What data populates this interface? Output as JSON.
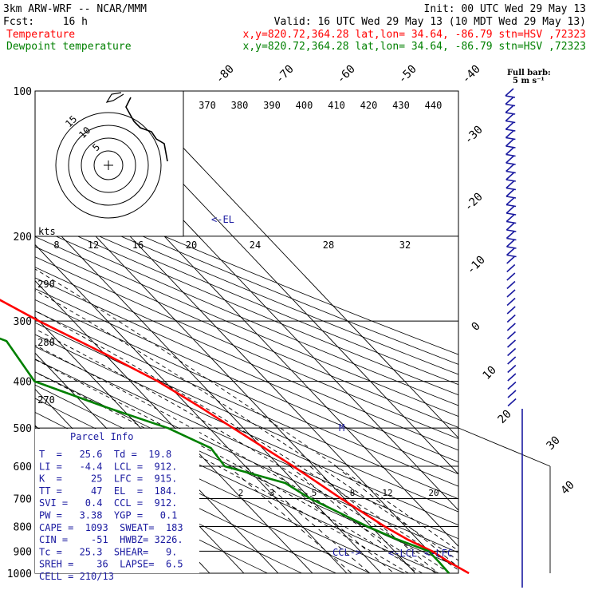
{
  "header": {
    "model": "3km ARW-WRF -- NCAR/MMM",
    "init": "Init: 00 UTC Wed 29 May 13",
    "fcst_label": "Fcst:",
    "fcst_value": "16 h",
    "valid": "Valid: 16 UTC Wed 29 May 13 (10 MDT Wed 29 May 13)",
    "temp_label": "Temperature",
    "dew_label": "Dewpoint temperature",
    "loc_line": "x,y=820.72,364.28   lat,lon= 34.64, -86.79   stn=HSV ,72323"
  },
  "colors": {
    "temperature": "#ff0000",
    "dewpoint": "#008000",
    "wind_barbs": "#1a1aa0",
    "parcel_info": "#1a1aa0"
  },
  "barb_legend": {
    "title": "Full barb:",
    "value": "5 m s⁻¹"
  },
  "hodograph": {
    "units": "kts",
    "ring_labels": [
      "15",
      "10",
      "5"
    ]
  },
  "chart_data": {
    "type": "line",
    "title": "Skew-T log-P sounding",
    "pressure_levels": [
      100,
      200,
      300,
      400,
      500,
      600,
      700,
      800,
      900,
      1000
    ],
    "isotherm_labels": [
      "-80",
      "-70",
      "-60",
      "-50",
      "-40",
      "-30",
      "-20",
      "-10",
      "0",
      "10",
      "20",
      "30",
      "40"
    ],
    "theta_labels": [
      "370",
      "380",
      "390",
      "400",
      "410",
      "420",
      "430",
      "440"
    ],
    "theta_e_labels": [
      "290",
      "280",
      "270"
    ],
    "theta_e_upper_labels": [
      "8",
      "12",
      "16",
      "20",
      "24",
      "28",
      "32"
    ],
    "mixing_ratio_labels": [
      "2",
      "3",
      "5",
      "8",
      "12",
      "20"
    ],
    "annotations": [
      "<-EL",
      "M",
      "CCL->",
      "<-LCL",
      "<-LFC"
    ],
    "series": [
      {
        "name": "Temperature",
        "color": "#ff0000",
        "points": [
          [
            100,
            -70
          ],
          [
            125,
            -66
          ],
          [
            145,
            -62
          ],
          [
            170,
            -60
          ],
          [
            185,
            -59
          ],
          [
            200,
            -54
          ],
          [
            250,
            -40
          ],
          [
            300,
            -30
          ],
          [
            350,
            -20
          ],
          [
            400,
            -12
          ],
          [
            450,
            -7
          ],
          [
            500,
            -3
          ],
          [
            600,
            4
          ],
          [
            700,
            9
          ],
          [
            800,
            14
          ],
          [
            850,
            17
          ],
          [
            900,
            21
          ],
          [
            950,
            23
          ],
          [
            1000,
            25.6
          ]
        ]
      },
      {
        "name": "Dewpoint temperature",
        "color": "#008000",
        "points": [
          [
            100,
            -91
          ],
          [
            120,
            -93
          ],
          [
            150,
            -87
          ],
          [
            170,
            -87
          ],
          [
            200,
            -82
          ],
          [
            250,
            -68
          ],
          [
            300,
            -55
          ],
          [
            330,
            -45
          ],
          [
            400,
            -48
          ],
          [
            450,
            -35
          ],
          [
            500,
            -22
          ],
          [
            550,
            -15
          ],
          [
            600,
            -16
          ],
          [
            650,
            -3
          ],
          [
            700,
            0
          ],
          [
            800,
            9
          ],
          [
            850,
            14
          ],
          [
            900,
            20
          ],
          [
            950,
            20
          ],
          [
            1000,
            19.8
          ]
        ]
      }
    ]
  },
  "parcel_info": {
    "title": "Parcel Info",
    "rows": [
      "T  =   25.6  Td =  19.8",
      "LI =   -4.4  LCL =  912.",
      "K  =     25  LFC =  915.",
      "TT =     47  EL  =  184.",
      "SVI =   0.4  CCL =  912.",
      "PW =   3.38  YGP =   0.1",
      "CAPE =  1093  SWEAT=  183",
      "CIN =    -51  HWBZ= 3226.",
      "Tc =   25.3  SHEAR=   9.",
      "SREH =    36  LAPSE=  6.5",
      "CELL = 210/13"
    ]
  }
}
